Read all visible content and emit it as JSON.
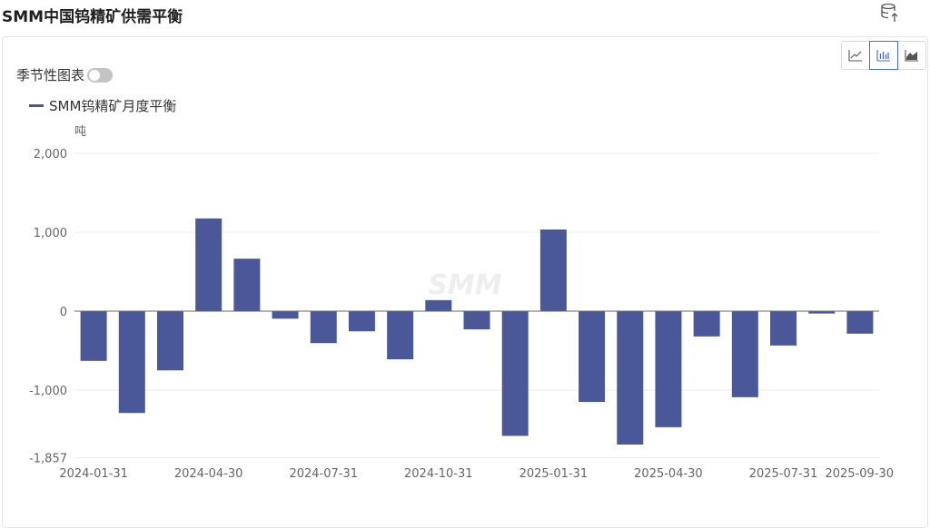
{
  "header": {
    "title": "SMM中国钨精矿供需平衡",
    "export_icon": "database-export-icon"
  },
  "controls": {
    "seasonal_label": "季节性图表",
    "seasonal_on": false,
    "chart_type_buttons": [
      {
        "icon": "line-chart-icon",
        "active": false
      },
      {
        "icon": "bar-chart-icon",
        "active": true
      },
      {
        "icon": "area-chart-icon",
        "active": false
      }
    ]
  },
  "colors": {
    "series": "#4a5899",
    "accent": "#4a6cd4"
  },
  "chart_data": {
    "type": "bar",
    "title": "",
    "xlabel": "",
    "ylabel": "吨",
    "ylim": [
      -1857,
      2000
    ],
    "yticks": [
      2000,
      1000,
      0,
      -1000,
      -1857
    ],
    "ytick_labels": [
      "2,000",
      "1,000",
      "0",
      "-1,000",
      "-1,857"
    ],
    "xtick_labels": [
      "2024-01-31",
      "2024-04-30",
      "2024-07-31",
      "2024-10-31",
      "2025-01-31",
      "2025-04-30",
      "2025-07-31",
      "2025-09-30"
    ],
    "watermark": "SMM",
    "grid": true,
    "legend_position": "top-left",
    "categories": [
      "2024-01-31",
      "2024-02-29",
      "2024-03-31",
      "2024-04-30",
      "2024-05-31",
      "2024-06-30",
      "2024-07-31",
      "2024-08-31",
      "2024-09-30",
      "2024-10-31",
      "2024-11-30",
      "2024-12-31",
      "2025-01-31",
      "2025-02-28",
      "2025-03-31",
      "2025-04-30",
      "2025-05-31",
      "2025-06-30",
      "2025-07-31",
      "2025-08-31",
      "2025-09-30"
    ],
    "series": [
      {
        "name": "SMM钨精矿月度平衡",
        "values": [
          -630,
          -1290,
          -750,
          1175,
          665,
          -95,
          -405,
          -255,
          -610,
          140,
          -230,
          -1580,
          1035,
          -1150,
          -1690,
          -1470,
          -320,
          -1090,
          -435,
          -30,
          -285
        ]
      }
    ]
  }
}
